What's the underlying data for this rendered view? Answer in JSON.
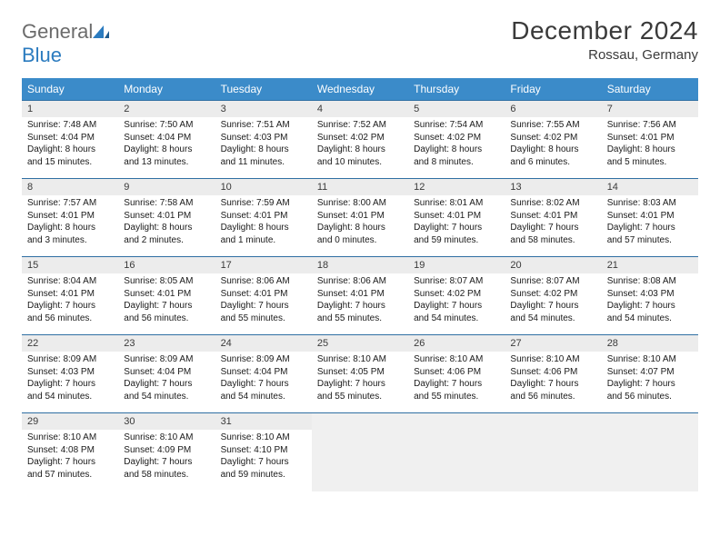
{
  "logo": {
    "text1": "General",
    "text2": "Blue"
  },
  "header": {
    "title": "December 2024",
    "location": "Rossau, Germany"
  },
  "colors": {
    "header_bg": "#3b8bc9",
    "header_text": "#ffffff",
    "border": "#2f6fa3",
    "daynum_bg": "#ececec",
    "text": "#1a1a1a",
    "logo_gray": "#6b6b6b",
    "logo_blue": "#2b7bbf"
  },
  "weekdays": [
    "Sunday",
    "Monday",
    "Tuesday",
    "Wednesday",
    "Thursday",
    "Friday",
    "Saturday"
  ],
  "weeks": [
    [
      {
        "n": "1",
        "sr": "Sunrise: 7:48 AM",
        "ss": "Sunset: 4:04 PM",
        "d1": "Daylight: 8 hours",
        "d2": "and 15 minutes."
      },
      {
        "n": "2",
        "sr": "Sunrise: 7:50 AM",
        "ss": "Sunset: 4:04 PM",
        "d1": "Daylight: 8 hours",
        "d2": "and 13 minutes."
      },
      {
        "n": "3",
        "sr": "Sunrise: 7:51 AM",
        "ss": "Sunset: 4:03 PM",
        "d1": "Daylight: 8 hours",
        "d2": "and 11 minutes."
      },
      {
        "n": "4",
        "sr": "Sunrise: 7:52 AM",
        "ss": "Sunset: 4:02 PM",
        "d1": "Daylight: 8 hours",
        "d2": "and 10 minutes."
      },
      {
        "n": "5",
        "sr": "Sunrise: 7:54 AM",
        "ss": "Sunset: 4:02 PM",
        "d1": "Daylight: 8 hours",
        "d2": "and 8 minutes."
      },
      {
        "n": "6",
        "sr": "Sunrise: 7:55 AM",
        "ss": "Sunset: 4:02 PM",
        "d1": "Daylight: 8 hours",
        "d2": "and 6 minutes."
      },
      {
        "n": "7",
        "sr": "Sunrise: 7:56 AM",
        "ss": "Sunset: 4:01 PM",
        "d1": "Daylight: 8 hours",
        "d2": "and 5 minutes."
      }
    ],
    [
      {
        "n": "8",
        "sr": "Sunrise: 7:57 AM",
        "ss": "Sunset: 4:01 PM",
        "d1": "Daylight: 8 hours",
        "d2": "and 3 minutes."
      },
      {
        "n": "9",
        "sr": "Sunrise: 7:58 AM",
        "ss": "Sunset: 4:01 PM",
        "d1": "Daylight: 8 hours",
        "d2": "and 2 minutes."
      },
      {
        "n": "10",
        "sr": "Sunrise: 7:59 AM",
        "ss": "Sunset: 4:01 PM",
        "d1": "Daylight: 8 hours",
        "d2": "and 1 minute."
      },
      {
        "n": "11",
        "sr": "Sunrise: 8:00 AM",
        "ss": "Sunset: 4:01 PM",
        "d1": "Daylight: 8 hours",
        "d2": "and 0 minutes."
      },
      {
        "n": "12",
        "sr": "Sunrise: 8:01 AM",
        "ss": "Sunset: 4:01 PM",
        "d1": "Daylight: 7 hours",
        "d2": "and 59 minutes."
      },
      {
        "n": "13",
        "sr": "Sunrise: 8:02 AM",
        "ss": "Sunset: 4:01 PM",
        "d1": "Daylight: 7 hours",
        "d2": "and 58 minutes."
      },
      {
        "n": "14",
        "sr": "Sunrise: 8:03 AM",
        "ss": "Sunset: 4:01 PM",
        "d1": "Daylight: 7 hours",
        "d2": "and 57 minutes."
      }
    ],
    [
      {
        "n": "15",
        "sr": "Sunrise: 8:04 AM",
        "ss": "Sunset: 4:01 PM",
        "d1": "Daylight: 7 hours",
        "d2": "and 56 minutes."
      },
      {
        "n": "16",
        "sr": "Sunrise: 8:05 AM",
        "ss": "Sunset: 4:01 PM",
        "d1": "Daylight: 7 hours",
        "d2": "and 56 minutes."
      },
      {
        "n": "17",
        "sr": "Sunrise: 8:06 AM",
        "ss": "Sunset: 4:01 PM",
        "d1": "Daylight: 7 hours",
        "d2": "and 55 minutes."
      },
      {
        "n": "18",
        "sr": "Sunrise: 8:06 AM",
        "ss": "Sunset: 4:01 PM",
        "d1": "Daylight: 7 hours",
        "d2": "and 55 minutes."
      },
      {
        "n": "19",
        "sr": "Sunrise: 8:07 AM",
        "ss": "Sunset: 4:02 PM",
        "d1": "Daylight: 7 hours",
        "d2": "and 54 minutes."
      },
      {
        "n": "20",
        "sr": "Sunrise: 8:07 AM",
        "ss": "Sunset: 4:02 PM",
        "d1": "Daylight: 7 hours",
        "d2": "and 54 minutes."
      },
      {
        "n": "21",
        "sr": "Sunrise: 8:08 AM",
        "ss": "Sunset: 4:03 PM",
        "d1": "Daylight: 7 hours",
        "d2": "and 54 minutes."
      }
    ],
    [
      {
        "n": "22",
        "sr": "Sunrise: 8:09 AM",
        "ss": "Sunset: 4:03 PM",
        "d1": "Daylight: 7 hours",
        "d2": "and 54 minutes."
      },
      {
        "n": "23",
        "sr": "Sunrise: 8:09 AM",
        "ss": "Sunset: 4:04 PM",
        "d1": "Daylight: 7 hours",
        "d2": "and 54 minutes."
      },
      {
        "n": "24",
        "sr": "Sunrise: 8:09 AM",
        "ss": "Sunset: 4:04 PM",
        "d1": "Daylight: 7 hours",
        "d2": "and 54 minutes."
      },
      {
        "n": "25",
        "sr": "Sunrise: 8:10 AM",
        "ss": "Sunset: 4:05 PM",
        "d1": "Daylight: 7 hours",
        "d2": "and 55 minutes."
      },
      {
        "n": "26",
        "sr": "Sunrise: 8:10 AM",
        "ss": "Sunset: 4:06 PM",
        "d1": "Daylight: 7 hours",
        "d2": "and 55 minutes."
      },
      {
        "n": "27",
        "sr": "Sunrise: 8:10 AM",
        "ss": "Sunset: 4:06 PM",
        "d1": "Daylight: 7 hours",
        "d2": "and 56 minutes."
      },
      {
        "n": "28",
        "sr": "Sunrise: 8:10 AM",
        "ss": "Sunset: 4:07 PM",
        "d1": "Daylight: 7 hours",
        "d2": "and 56 minutes."
      }
    ],
    [
      {
        "n": "29",
        "sr": "Sunrise: 8:10 AM",
        "ss": "Sunset: 4:08 PM",
        "d1": "Daylight: 7 hours",
        "d2": "and 57 minutes."
      },
      {
        "n": "30",
        "sr": "Sunrise: 8:10 AM",
        "ss": "Sunset: 4:09 PM",
        "d1": "Daylight: 7 hours",
        "d2": "and 58 minutes."
      },
      {
        "n": "31",
        "sr": "Sunrise: 8:10 AM",
        "ss": "Sunset: 4:10 PM",
        "d1": "Daylight: 7 hours",
        "d2": "and 59 minutes."
      },
      null,
      null,
      null,
      null
    ]
  ]
}
